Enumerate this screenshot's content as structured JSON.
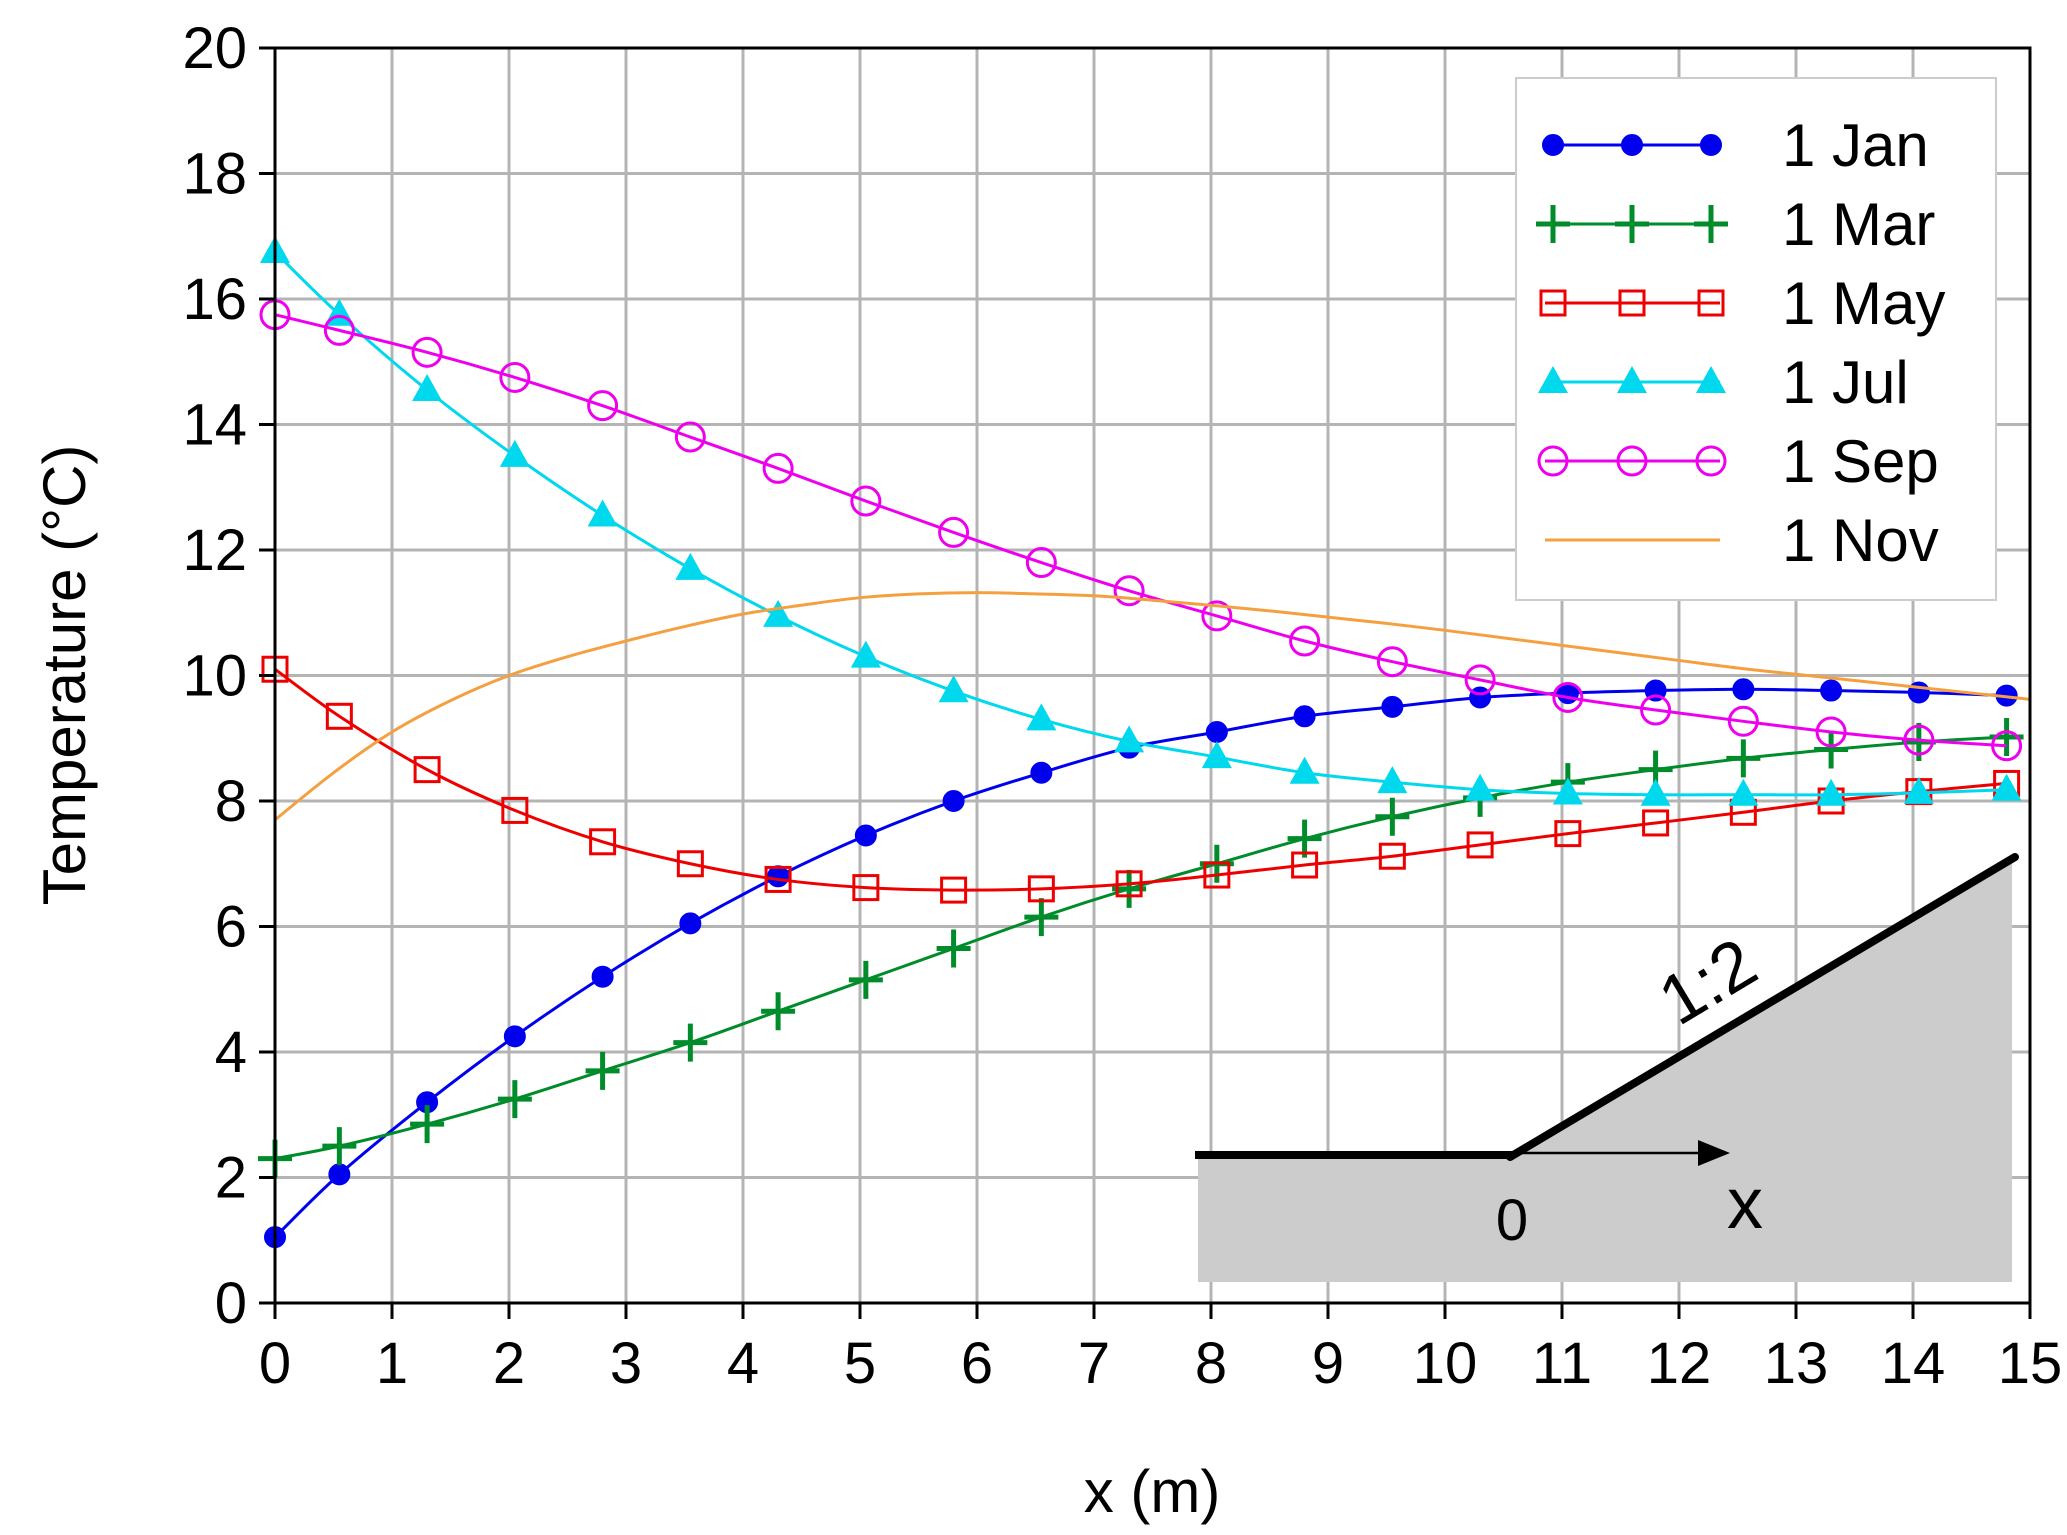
{
  "chart_data": {
    "type": "line",
    "xlabel": "x (m)",
    "ylabel": "Temperature (°C)",
    "xlim": [
      0,
      15
    ],
    "ylim": [
      0,
      20
    ],
    "xticks": [
      "0",
      "1",
      "2",
      "3",
      "4",
      "5",
      "6",
      "7",
      "8",
      "9",
      "10",
      "11",
      "12",
      "13",
      "14",
      "15"
    ],
    "yticks": [
      "0",
      "2",
      "4",
      "6",
      "8",
      "10",
      "12",
      "14",
      "16",
      "18",
      "20"
    ],
    "grid": true,
    "legend_position": "top-right",
    "series": [
      {
        "name": "1 Jan",
        "color": "#0000ee",
        "marker": "filled-circle",
        "x": [
          0,
          0.55,
          1.3,
          2.05,
          2.8,
          3.55,
          4.3,
          5.05,
          5.8,
          6.55,
          7.3,
          8.05,
          8.8,
          9.55,
          10.3,
          11.05,
          11.8,
          12.55,
          13.3,
          14.05,
          14.8
        ],
        "y": [
          1.05,
          2.05,
          3.2,
          4.25,
          5.2,
          6.05,
          6.8,
          7.45,
          8.0,
          8.45,
          8.85,
          9.1,
          9.35,
          9.5,
          9.65,
          9.72,
          9.76,
          9.78,
          9.76,
          9.73,
          9.68
        ]
      },
      {
        "name": "1 Mar",
        "color": "#008c2a",
        "marker": "plus",
        "x": [
          0,
          0.55,
          1.3,
          2.05,
          2.8,
          3.55,
          4.3,
          5.05,
          5.8,
          6.55,
          7.3,
          8.05,
          8.8,
          9.55,
          10.3,
          11.05,
          11.8,
          12.55,
          13.3,
          14.05,
          14.8
        ],
        "y": [
          2.3,
          2.5,
          2.85,
          3.25,
          3.7,
          4.15,
          4.65,
          5.15,
          5.65,
          6.15,
          6.6,
          7.0,
          7.4,
          7.75,
          8.05,
          8.3,
          8.5,
          8.68,
          8.82,
          8.94,
          9.02
        ]
      },
      {
        "name": "1 May",
        "color": "#ee0000",
        "marker": "open-square",
        "x": [
          0,
          0.55,
          1.3,
          2.05,
          2.8,
          3.55,
          4.3,
          5.05,
          5.8,
          6.55,
          7.3,
          8.05,
          8.8,
          9.55,
          10.3,
          11.05,
          11.8,
          12.55,
          13.3,
          14.05,
          14.8
        ],
        "y": [
          10.1,
          9.35,
          8.5,
          7.85,
          7.35,
          7.0,
          6.75,
          6.62,
          6.58,
          6.6,
          6.68,
          6.82,
          6.98,
          7.12,
          7.3,
          7.48,
          7.65,
          7.82,
          8.0,
          8.15,
          8.28
        ]
      },
      {
        "name": "1 Jul",
        "color": "#00d8ee",
        "marker": "filled-triangle",
        "x": [
          0,
          0.55,
          1.3,
          2.05,
          2.8,
          3.55,
          4.3,
          5.05,
          5.8,
          6.55,
          7.3,
          8.05,
          8.8,
          9.55,
          10.3,
          11.05,
          11.8,
          12.55,
          13.3,
          14.05,
          14.8
        ],
        "y": [
          16.75,
          15.75,
          14.55,
          13.5,
          12.55,
          11.7,
          10.95,
          10.3,
          9.75,
          9.3,
          8.95,
          8.7,
          8.45,
          8.3,
          8.18,
          8.12,
          8.1,
          8.1,
          8.1,
          8.13,
          8.18
        ]
      },
      {
        "name": "1 Sep",
        "color": "#ee00ee",
        "marker": "open-circle",
        "x": [
          0,
          0.55,
          1.3,
          2.05,
          2.8,
          3.55,
          4.3,
          5.05,
          5.8,
          6.55,
          7.3,
          8.05,
          8.8,
          9.55,
          10.3,
          11.05,
          11.8,
          12.55,
          13.3,
          14.05,
          14.8
        ],
        "y": [
          15.75,
          15.5,
          15.15,
          14.75,
          14.3,
          13.8,
          13.3,
          12.78,
          12.28,
          11.8,
          11.35,
          10.95,
          10.55,
          10.22,
          9.93,
          9.65,
          9.45,
          9.27,
          9.1,
          8.97,
          8.88
        ]
      },
      {
        "name": "1 Nov",
        "color": "#f5a040",
        "marker": "none",
        "x": [
          0,
          0.5,
          1,
          1.5,
          2,
          2.5,
          3,
          3.5,
          4,
          4.5,
          5,
          5.5,
          6,
          6.5,
          7,
          7.5,
          8,
          8.5,
          9,
          9.5,
          10,
          10.5,
          11,
          11.5,
          12,
          12.5,
          13,
          13.5,
          14,
          14.5,
          15
        ],
        "y": [
          7.7,
          8.45,
          9.1,
          9.6,
          10.0,
          10.3,
          10.55,
          10.78,
          10.98,
          11.12,
          11.24,
          11.3,
          11.32,
          11.3,
          11.27,
          11.2,
          11.12,
          11.03,
          10.93,
          10.83,
          10.72,
          10.6,
          10.48,
          10.36,
          10.24,
          10.12,
          10.02,
          9.92,
          9.82,
          9.72,
          9.62
        ]
      }
    ],
    "inset": {
      "slope_label": "1:2",
      "origin_label": "0",
      "axis_label": "x"
    }
  }
}
